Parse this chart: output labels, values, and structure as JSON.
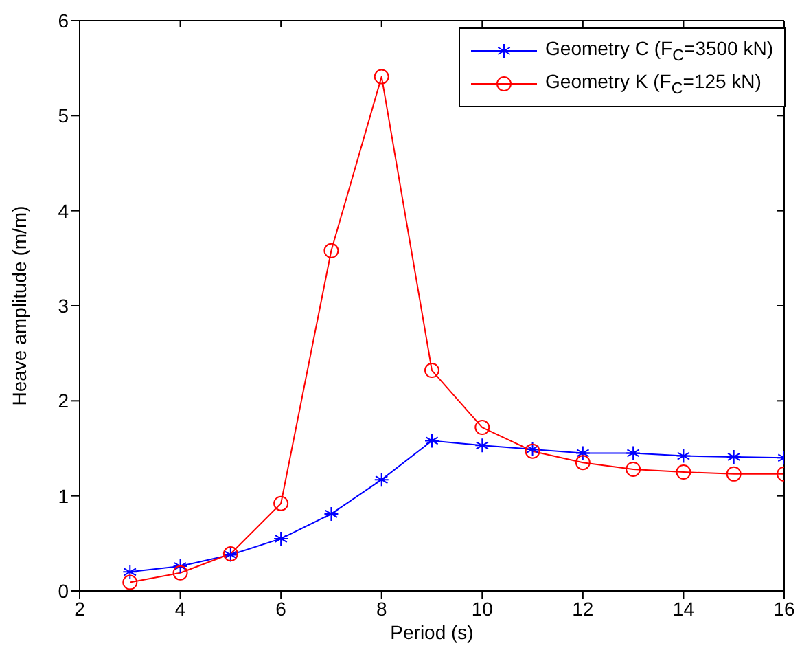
{
  "chart_data": {
    "type": "line",
    "xlabel": "Period (s)",
    "ylabel": "Heave amplitude (m/m)",
    "x": [
      3,
      4,
      5,
      6,
      7,
      8,
      9,
      10,
      11,
      12,
      13,
      14,
      15,
      16
    ],
    "series": [
      {
        "name": "Geometry C (F$_{C}$=3500 kN)",
        "color": "#0000ff",
        "marker": "cross",
        "values": [
          0.2,
          0.26,
          0.38,
          0.55,
          0.81,
          1.17,
          1.58,
          1.53,
          1.49,
          1.45,
          1.45,
          1.42,
          1.41,
          1.4
        ]
      },
      {
        "name": "Geometry K (F$_{C}$=125 kN)",
        "color": "#ff0000",
        "marker": "circle",
        "values": [
          0.09,
          0.19,
          0.39,
          0.92,
          3.58,
          5.41,
          2.32,
          1.72,
          1.47,
          1.35,
          1.28,
          1.25,
          1.23,
          1.23
        ]
      }
    ],
    "xlim": [
      2,
      16
    ],
    "xticks": [
      2,
      4,
      6,
      8,
      10,
      12,
      14,
      16
    ],
    "ylim": [
      0,
      6
    ],
    "yticks": [
      0,
      1,
      2,
      3,
      4,
      5,
      6
    ],
    "grid": false,
    "legend": "top right",
    "line_style": "solid"
  }
}
